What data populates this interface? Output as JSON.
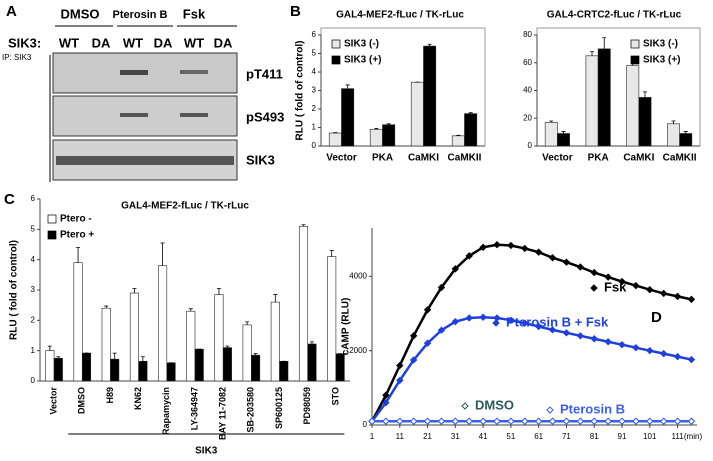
{
  "panel_labels": [
    "A",
    "B",
    "C",
    "D"
  ],
  "blot": {
    "treatments": [
      "DMSO",
      "Pterosin B",
      "Fsk"
    ],
    "genotype_label": "SIK3:",
    "lanes": [
      "WT",
      "DA",
      "WT",
      "DA",
      "WT",
      "DA"
    ],
    "ip_label": "IP: SIK3",
    "bands": [
      "pT411",
      "pS493",
      "SIK3"
    ]
  },
  "chart_data": [
    {
      "type": "bar",
      "title": "GAL4-MEF2-fLuc / TK-rLuc",
      "y_label": "RLU ( fold of control)",
      "categories": [
        "Vector",
        "PKA",
        "CaMKI",
        "CaMKII"
      ],
      "series": [
        {
          "name": "SIK3 (-)",
          "color": "#e8e8e8",
          "values": [
            0.7,
            0.9,
            3.45,
            0.55
          ],
          "errors": [
            0.02,
            0.05,
            0,
            0.03
          ]
        },
        {
          "name": "SIK3 (+)",
          "color": "#000000",
          "values": [
            3.1,
            1.15,
            5.4,
            1.75
          ],
          "errors": [
            0.2,
            0.05,
            0.1,
            0.05
          ]
        }
      ],
      "ylim": [
        0,
        6
      ],
      "yticks": [
        0,
        1,
        2,
        3,
        4,
        5,
        6
      ]
    },
    {
      "type": "bar",
      "title": "GAL4-CRTC2-fLuc / TK-rLuc",
      "categories": [
        "Vector",
        "PKA",
        "CaMKI",
        "CaMKII"
      ],
      "series": [
        {
          "name": "SIK3 (-)",
          "color": "#e8e8e8",
          "values": [
            17,
            65,
            58,
            16
          ],
          "errors": [
            1,
            3,
            2,
            2
          ]
        },
        {
          "name": "SIK3 (+)",
          "color": "#000000",
          "values": [
            9,
            70,
            35,
            9
          ],
          "errors": [
            1.5,
            8,
            4,
            1.5
          ]
        }
      ],
      "ylim": [
        0,
        80
      ],
      "yticks": [
        0,
        20,
        40,
        60,
        80
      ]
    },
    {
      "type": "bar",
      "title": "GAL4-MEF2-fLuc / TK-rLuc",
      "y_label": "RLU ( fold of control)",
      "group_label": "SIK3",
      "categories": [
        "Vector",
        "DMSO",
        "H89",
        "KN62",
        "Rapamycin",
        "LY-364947",
        "BAY 11-7082",
        "SB-203580",
        "SP600125",
        "PD98059",
        "STO"
      ],
      "series": [
        {
          "name": "Ptero -",
          "color": "#ffffff",
          "values": [
            1.0,
            3.9,
            2.4,
            2.9,
            3.8,
            2.3,
            2.85,
            1.85,
            2.6,
            5.1,
            4.1
          ],
          "errors": [
            0.15,
            0.5,
            0.07,
            0.15,
            0.75,
            0.08,
            0.2,
            0.1,
            0.25,
            0.05,
            0.2
          ]
        },
        {
          "name": "Ptero +",
          "color": "#000000",
          "values": [
            0.75,
            0.92,
            0.72,
            0.65,
            0.6,
            1.05,
            1.1,
            0.85,
            0.65,
            1.22,
            0.9
          ],
          "errors": [
            0.05,
            0,
            0.2,
            0.15,
            0,
            0,
            0.05,
            0.05,
            0,
            0.07,
            0
          ]
        }
      ],
      "ylim": [
        0,
        6
      ],
      "yticks": [
        0,
        1,
        2,
        3,
        4,
        5,
        6
      ]
    },
    {
      "type": "line",
      "y_label": "cAMP (RLU)",
      "x_label": "(min)",
      "x": [
        1,
        6,
        11,
        16,
        21,
        26,
        31,
        36,
        41,
        46,
        51,
        56,
        61,
        66,
        71,
        76,
        81,
        86,
        91,
        96,
        101,
        106,
        111,
        116
      ],
      "series": [
        {
          "name": "Fsk",
          "color": "#000000",
          "values": [
            100,
            800,
            1600,
            2400,
            3100,
            3700,
            4200,
            4550,
            4780,
            4850,
            4830,
            4750,
            4650,
            4500,
            4380,
            4250,
            4100,
            3980,
            3860,
            3750,
            3640,
            3540,
            3460,
            3380
          ]
        },
        {
          "name": "Pterosin B + Fsk",
          "color": "#1f3fe0",
          "values": [
            100,
            600,
            1200,
            1750,
            2200,
            2550,
            2780,
            2880,
            2900,
            2880,
            2820,
            2740,
            2650,
            2560,
            2480,
            2400,
            2320,
            2240,
            2160,
            2080,
            2000,
            1920,
            1840,
            1760
          ]
        },
        {
          "name": "DMSO",
          "color": "#2a5a5a",
          "values": [
            100,
            100,
            100,
            100,
            100,
            100,
            100,
            100,
            100,
            100,
            100,
            100,
            100,
            100,
            100,
            100,
            100,
            100,
            100,
            100,
            100,
            100,
            100,
            100
          ]
        },
        {
          "name": "Pterosin B",
          "color": "#3a5ff0",
          "values": [
            100,
            100,
            100,
            100,
            100,
            100,
            100,
            100,
            100,
            100,
            100,
            100,
            100,
            100,
            100,
            100,
            100,
            100,
            100,
            100,
            100,
            100,
            100,
            100
          ]
        }
      ],
      "xlim": [
        1,
        118
      ],
      "xticks": [
        1,
        11,
        21,
        31,
        41,
        51,
        61,
        71,
        81,
        91,
        101,
        111
      ],
      "ylim": [
        0,
        5300
      ],
      "yticks": [
        0,
        2000,
        4000
      ]
    }
  ]
}
